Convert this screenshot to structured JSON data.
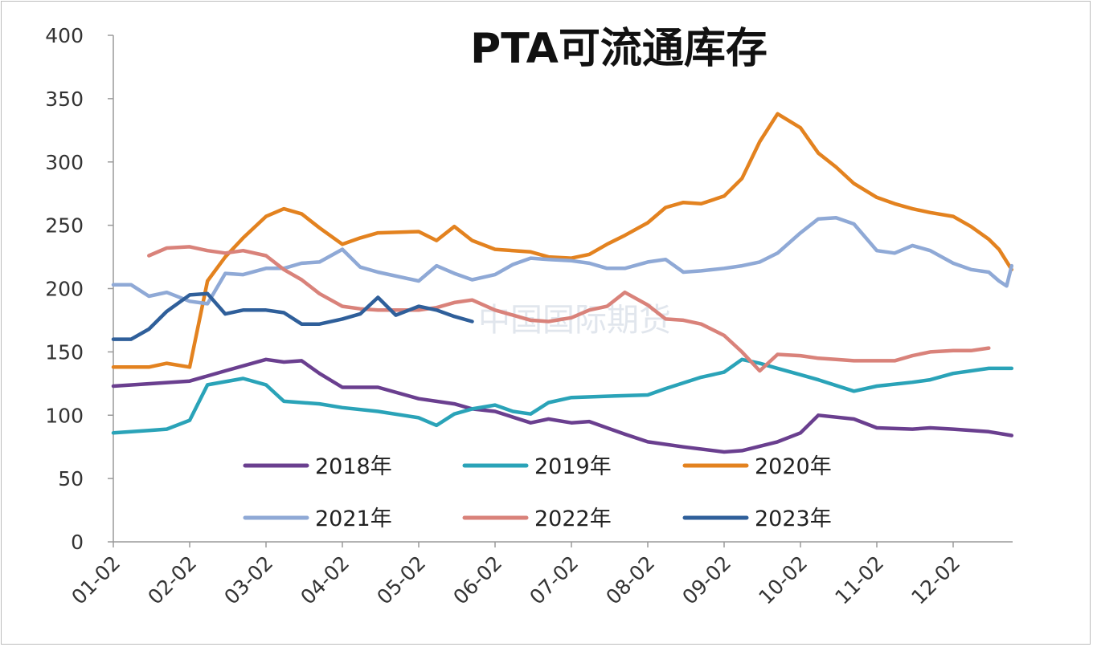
{
  "chart_data": {
    "type": "line",
    "title": "PTA可流通库存",
    "watermark": "中国国际期货",
    "ylim": [
      0,
      400
    ],
    "yticks": [
      0,
      50,
      100,
      150,
      200,
      250,
      300,
      350,
      400
    ],
    "xticks": [
      "01-02",
      "02-02",
      "03-02",
      "04-02",
      "05-02",
      "06-02",
      "07-02",
      "08-02",
      "09-02",
      "10-02",
      "11-02",
      "12-02"
    ],
    "grid": false,
    "legend_placement": "bottom-center-inside",
    "series": [
      {
        "name": "2018年",
        "color": "#6a3f8f",
        "points": [
          [
            "01-02",
            123
          ],
          [
            "02-02",
            127
          ],
          [
            "02-16",
            135
          ],
          [
            "03-02",
            144
          ],
          [
            "03-09",
            142
          ],
          [
            "03-16",
            143
          ],
          [
            "03-23",
            133
          ],
          [
            "04-02",
            122
          ],
          [
            "04-16",
            122
          ],
          [
            "05-02",
            113
          ],
          [
            "05-16",
            109
          ],
          [
            "05-23",
            105
          ],
          [
            "06-02",
            103
          ],
          [
            "06-16",
            94
          ],
          [
            "06-23",
            97
          ],
          [
            "07-02",
            94
          ],
          [
            "07-09",
            95
          ],
          [
            "07-23",
            85
          ],
          [
            "08-02",
            79
          ],
          [
            "08-16",
            75
          ],
          [
            "09-02",
            71
          ],
          [
            "09-09",
            72
          ],
          [
            "09-23",
            79
          ],
          [
            "10-02",
            86
          ],
          [
            "10-09",
            100
          ],
          [
            "10-23",
            97
          ],
          [
            "11-02",
            90
          ],
          [
            "11-16",
            89
          ],
          [
            "11-23",
            90
          ],
          [
            "12-02",
            89
          ],
          [
            "12-16",
            87
          ],
          [
            "12-25",
            84
          ]
        ]
      },
      {
        "name": "2019年",
        "color": "#2aa3b8",
        "points": [
          [
            "01-02",
            86
          ],
          [
            "01-09",
            87
          ],
          [
            "01-16",
            88
          ],
          [
            "01-23",
            89
          ],
          [
            "02-02",
            96
          ],
          [
            "02-09",
            124
          ],
          [
            "02-23",
            129
          ],
          [
            "03-02",
            124
          ],
          [
            "03-09",
            111
          ],
          [
            "03-23",
            109
          ],
          [
            "04-02",
            106
          ],
          [
            "04-16",
            103
          ],
          [
            "05-02",
            98
          ],
          [
            "05-09",
            92
          ],
          [
            "05-16",
            101
          ],
          [
            "05-23",
            105
          ],
          [
            "06-02",
            108
          ],
          [
            "06-09",
            103
          ],
          [
            "06-16",
            101
          ],
          [
            "06-23",
            110
          ],
          [
            "07-02",
            114
          ],
          [
            "07-16",
            115
          ],
          [
            "08-02",
            116
          ],
          [
            "08-09",
            121
          ],
          [
            "08-23",
            130
          ],
          [
            "09-02",
            134
          ],
          [
            "09-09",
            144
          ],
          [
            "09-16",
            141
          ],
          [
            "09-23",
            137
          ],
          [
            "10-02",
            132
          ],
          [
            "10-09",
            128
          ],
          [
            "10-23",
            119
          ],
          [
            "11-02",
            123
          ],
          [
            "11-16",
            126
          ],
          [
            "11-23",
            128
          ],
          [
            "12-02",
            133
          ],
          [
            "12-16",
            137
          ],
          [
            "12-25",
            137
          ]
        ]
      },
      {
        "name": "2020年",
        "color": "#e3821f",
        "points": [
          [
            "01-02",
            138
          ],
          [
            "01-16",
            138
          ],
          [
            "01-23",
            141
          ],
          [
            "02-02",
            138
          ],
          [
            "02-09",
            206
          ],
          [
            "02-16",
            225
          ],
          [
            "02-23",
            240
          ],
          [
            "03-02",
            257
          ],
          [
            "03-09",
            263
          ],
          [
            "03-16",
            259
          ],
          [
            "03-23",
            248
          ],
          [
            "04-02",
            235
          ],
          [
            "04-09",
            240
          ],
          [
            "04-16",
            244
          ],
          [
            "05-02",
            245
          ],
          [
            "05-09",
            238
          ],
          [
            "05-16",
            249
          ],
          [
            "05-23",
            238
          ],
          [
            "06-02",
            231
          ],
          [
            "06-16",
            229
          ],
          [
            "06-23",
            225
          ],
          [
            "07-02",
            224
          ],
          [
            "07-09",
            227
          ],
          [
            "07-16",
            235
          ],
          [
            "07-23",
            242
          ],
          [
            "08-02",
            252
          ],
          [
            "08-09",
            264
          ],
          [
            "08-16",
            268
          ],
          [
            "08-23",
            267
          ],
          [
            "09-02",
            273
          ],
          [
            "09-09",
            287
          ],
          [
            "09-16",
            316
          ],
          [
            "09-23",
            338
          ],
          [
            "10-02",
            327
          ],
          [
            "10-09",
            307
          ],
          [
            "10-16",
            296
          ],
          [
            "10-23",
            283
          ],
          [
            "11-02",
            272
          ],
          [
            "11-09",
            267
          ],
          [
            "11-16",
            263
          ],
          [
            "11-23",
            260
          ],
          [
            "12-02",
            257
          ],
          [
            "12-09",
            249
          ],
          [
            "12-16",
            239
          ],
          [
            "12-20",
            231
          ],
          [
            "12-25",
            215
          ]
        ]
      },
      {
        "name": "2021年",
        "color": "#8fa9d6",
        "points": [
          [
            "01-02",
            203
          ],
          [
            "01-09",
            203
          ],
          [
            "01-16",
            194
          ],
          [
            "01-23",
            197
          ],
          [
            "02-02",
            190
          ],
          [
            "02-09",
            188
          ],
          [
            "02-16",
            212
          ],
          [
            "02-23",
            211
          ],
          [
            "03-02",
            216
          ],
          [
            "03-09",
            216
          ],
          [
            "03-16",
            220
          ],
          [
            "03-23",
            221
          ],
          [
            "04-02",
            231
          ],
          [
            "04-09",
            217
          ],
          [
            "04-16",
            213
          ],
          [
            "05-02",
            206
          ],
          [
            "05-09",
            218
          ],
          [
            "05-16",
            212
          ],
          [
            "05-23",
            207
          ],
          [
            "06-02",
            211
          ],
          [
            "06-09",
            219
          ],
          [
            "06-16",
            224
          ],
          [
            "06-23",
            223
          ],
          [
            "07-02",
            222
          ],
          [
            "07-09",
            220
          ],
          [
            "07-16",
            216
          ],
          [
            "07-23",
            216
          ],
          [
            "08-02",
            221
          ],
          [
            "08-09",
            223
          ],
          [
            "08-16",
            213
          ],
          [
            "08-23",
            214
          ],
          [
            "09-02",
            216
          ],
          [
            "09-09",
            218
          ],
          [
            "09-16",
            221
          ],
          [
            "09-23",
            228
          ],
          [
            "10-02",
            244
          ],
          [
            "10-09",
            255
          ],
          [
            "10-16",
            256
          ],
          [
            "10-23",
            251
          ],
          [
            "11-02",
            230
          ],
          [
            "11-09",
            228
          ],
          [
            "11-16",
            234
          ],
          [
            "11-23",
            230
          ],
          [
            "12-02",
            220
          ],
          [
            "12-09",
            215
          ],
          [
            "12-16",
            213
          ],
          [
            "12-20",
            206
          ],
          [
            "12-23",
            202
          ],
          [
            "12-25",
            218
          ]
        ]
      },
      {
        "name": "2022年",
        "color": "#d9827a",
        "points": [
          [
            "01-16",
            226
          ],
          [
            "01-23",
            232
          ],
          [
            "02-02",
            233
          ],
          [
            "02-09",
            230
          ],
          [
            "02-16",
            228
          ],
          [
            "02-23",
            230
          ],
          [
            "03-02",
            226
          ],
          [
            "03-09",
            215
          ],
          [
            "03-16",
            207
          ],
          [
            "03-23",
            196
          ],
          [
            "04-02",
            186
          ],
          [
            "04-09",
            184
          ],
          [
            "04-16",
            183
          ],
          [
            "05-02",
            183
          ],
          [
            "05-09",
            185
          ],
          [
            "05-16",
            189
          ],
          [
            "05-23",
            191
          ],
          [
            "06-02",
            183
          ],
          [
            "06-09",
            179
          ],
          [
            "06-16",
            175
          ],
          [
            "06-23",
            174
          ],
          [
            "07-02",
            177
          ],
          [
            "07-09",
            183
          ],
          [
            "07-16",
            186
          ],
          [
            "07-23",
            197
          ],
          [
            "08-02",
            187
          ],
          [
            "08-09",
            176
          ],
          [
            "08-16",
            175
          ],
          [
            "08-23",
            172
          ],
          [
            "09-02",
            163
          ],
          [
            "09-09",
            150
          ],
          [
            "09-16",
            135
          ],
          [
            "09-23",
            148
          ],
          [
            "10-02",
            147
          ],
          [
            "10-09",
            145
          ],
          [
            "10-16",
            144
          ],
          [
            "10-23",
            143
          ],
          [
            "11-02",
            143
          ],
          [
            "11-09",
            143
          ],
          [
            "11-16",
            147
          ],
          [
            "11-23",
            150
          ],
          [
            "12-02",
            151
          ],
          [
            "12-09",
            151
          ],
          [
            "12-16",
            153
          ]
        ]
      },
      {
        "name": "2023年",
        "color": "#2f5f9a",
        "points": [
          [
            "01-02",
            160
          ],
          [
            "01-09",
            160
          ],
          [
            "01-16",
            168
          ],
          [
            "01-23",
            182
          ],
          [
            "02-02",
            195
          ],
          [
            "02-09",
            196
          ],
          [
            "02-16",
            180
          ],
          [
            "02-23",
            183
          ],
          [
            "03-02",
            183
          ],
          [
            "03-09",
            181
          ],
          [
            "03-16",
            172
          ],
          [
            "03-23",
            172
          ],
          [
            "04-02",
            176
          ],
          [
            "04-09",
            180
          ],
          [
            "04-16",
            193
          ],
          [
            "04-23",
            179
          ],
          [
            "05-02",
            186
          ],
          [
            "05-09",
            183
          ],
          [
            "05-16",
            178
          ],
          [
            "05-23",
            174
          ]
        ]
      }
    ]
  }
}
